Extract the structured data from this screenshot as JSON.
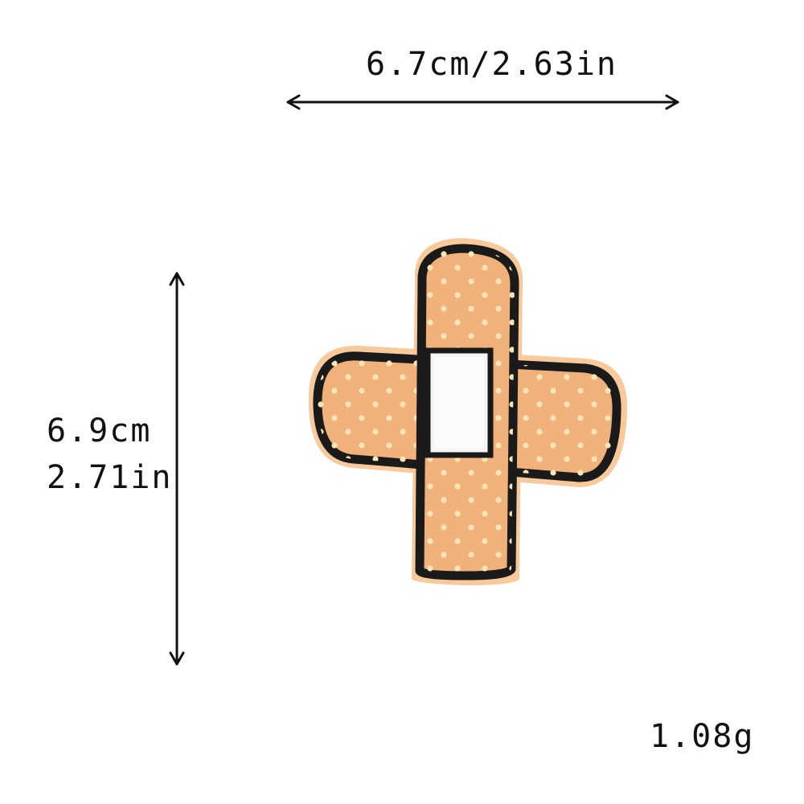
{
  "dimensions": {
    "width_text": "6.7cm/2.63in",
    "height_cm_text": "6.9cm",
    "height_in_text": "2.71in"
  },
  "weight_text": "1.08g",
  "product": {
    "icon": "bandage-cross-patch-icon",
    "colors": {
      "skin_tan": "#f0b27a",
      "outline": "#1a1a1a",
      "dots": "#fbe5b6",
      "pad": "#f4f4f6"
    }
  }
}
